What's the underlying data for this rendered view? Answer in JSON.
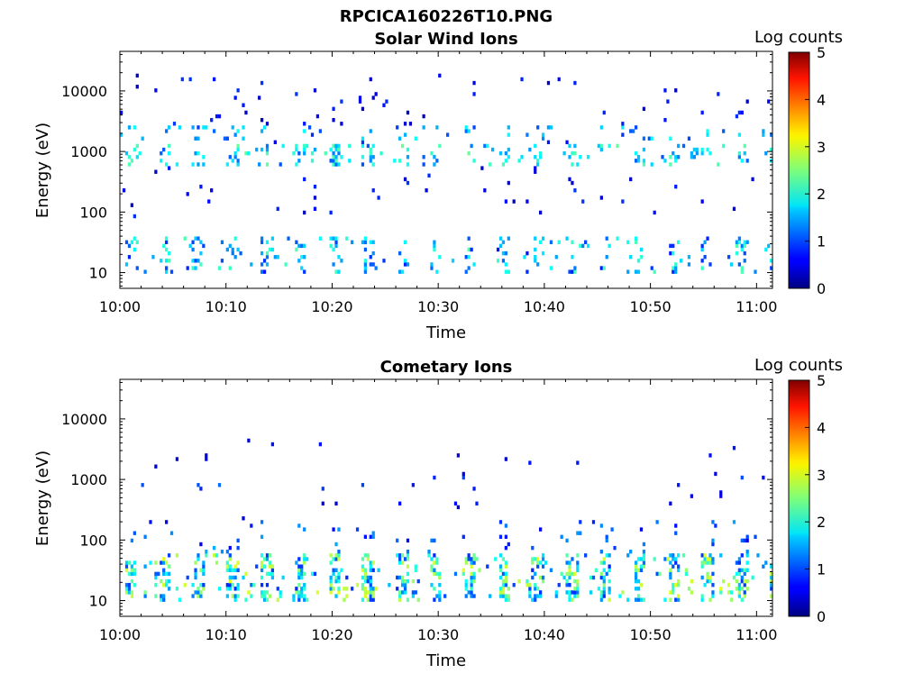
{
  "figure_title": "RPCICA160226T10.PNG",
  "chart_data": [
    {
      "type": "heatmap",
      "title": "Solar Wind Ions",
      "xlabel": "Time",
      "ylabel": "Energy (eV)",
      "x_ticks": [
        "10:00",
        "10:10",
        "10:20",
        "10:30",
        "10:40",
        "10:50",
        "11:00"
      ],
      "x_range_minutes": [
        0,
        61.5
      ],
      "y_scale": "log",
      "y_ticks": [
        "10",
        "100",
        "1000",
        "10000"
      ],
      "y_range": [
        5.5,
        45000
      ],
      "colorbar": {
        "label": "Log counts",
        "ticks": [
          "0",
          "1",
          "2",
          "3",
          "4",
          "5"
        ],
        "range": [
          0,
          5
        ],
        "colormap": "jet"
      },
      "grid": false,
      "features": [
        {
          "band": "solar wind 1000 eV",
          "energy_center": 900,
          "intensity": 1.8
        },
        {
          "band": "solar wind 2000 eV",
          "energy_center": 2000,
          "intensity": 1.6
        },
        {
          "band": "low energy",
          "energy_center": 15,
          "intensity": 1.4
        }
      ]
    },
    {
      "type": "heatmap",
      "title": "Cometary Ions",
      "xlabel": "Time",
      "ylabel": "Energy (eV)",
      "x_ticks": [
        "10:00",
        "10:10",
        "10:20",
        "10:30",
        "10:40",
        "10:50",
        "11:00"
      ],
      "x_range_minutes": [
        0,
        61.5
      ],
      "y_scale": "log",
      "y_ticks": [
        "10",
        "100",
        "1000",
        "10000"
      ],
      "y_range": [
        5.5,
        45000
      ],
      "colorbar": {
        "label": "Log counts",
        "ticks": [
          "0",
          "1",
          "2",
          "3",
          "4",
          "5"
        ],
        "range": [
          0,
          5
        ],
        "colormap": "jet"
      },
      "grid": false,
      "features": [
        {
          "band": "cometary pulses",
          "energy_center": 25,
          "intensity": 2.2
        },
        {
          "band": "sparse 1000 eV",
          "energy_center": 900,
          "intensity": 1.0
        }
      ]
    }
  ]
}
